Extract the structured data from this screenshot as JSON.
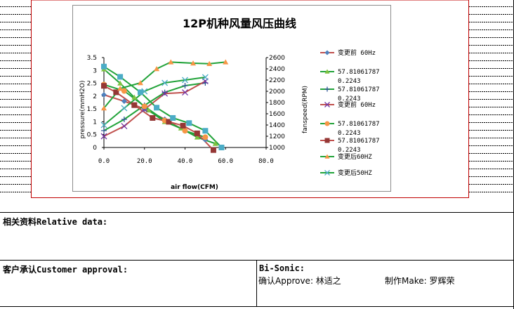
{
  "sheet": {
    "relative_data_label": "相关资料Relative data:",
    "customer_approval_label": "客户承认Customer approval:",
    "company": "Bi-Sonic:",
    "approve_label": "确认Approve: 林适之",
    "make_label": "制作Make: 罗辉荣"
  },
  "chart_data": {
    "type": "line",
    "title": "12P机种风量风压曲线",
    "xlabel": "air flow(CFM)",
    "ylabel_left": "pressure(mmH2O)",
    "ylabel_right": "fanspeed(RPM)",
    "xlim": [
      0,
      80
    ],
    "x_ticks": [
      "0.0",
      "20.0",
      "40.0",
      "60.0",
      "80.0"
    ],
    "x_tick_values": [
      0,
      20,
      40,
      60,
      80
    ],
    "ylim_left": [
      0,
      3.5
    ],
    "y_left_ticks": [
      "0",
      "0.5",
      "1",
      "1.5",
      "2",
      "2.5",
      "3",
      "3.5"
    ],
    "y_left_tick_values": [
      0,
      0.5,
      1,
      1.5,
      2,
      2.5,
      3,
      3.5
    ],
    "ylim_right": [
      1000,
      2600
    ],
    "y_right_ticks": [
      "1000",
      "1200",
      "1400",
      "1600",
      "1800",
      "2000",
      "2200",
      "2400",
      "2600"
    ],
    "y_right_tick_values": [
      1000,
      1200,
      1400,
      1600,
      1800,
      2000,
      2200,
      2400,
      2600
    ],
    "legend_position": "right",
    "series": [
      {
        "name": "变更前 60Hz",
        "axis": "left",
        "color": "#C0504D",
        "marker": "diamond",
        "marker_color": "#4F81BD",
        "x": [
          0,
          10,
          20,
          30,
          40,
          50
        ],
        "y": [
          2.05,
          1.8,
          1.5,
          1.1,
          0.65,
          0.3
        ]
      },
      {
        "name": "57.81061787 0.2243",
        "axis": "left",
        "color": "#22A33A",
        "marker": "triangle",
        "marker_color": "#7EC241",
        "x": [
          0,
          8,
          15,
          22,
          30,
          38,
          46,
          55
        ],
        "y": [
          3.05,
          2.5,
          1.95,
          1.45,
          1.0,
          0.75,
          0.4,
          0.15
        ]
      },
      {
        "name": "57.81061787 0.2243",
        "axis": "right",
        "color": "#22A33A",
        "marker": "plus",
        "marker_color": "#2F5597",
        "x": [
          0,
          10,
          20,
          30,
          40,
          50
        ],
        "y": [
          1300,
          1500,
          1750,
          1980,
          2100,
          2150
        ]
      },
      {
        "name": "变更前 60Hz",
        "axis": "right",
        "color": "#C0504D",
        "marker": "x",
        "marker_color": "#7030A0",
        "x": [
          0,
          10,
          20,
          30,
          40,
          50
        ],
        "y": [
          1200,
          1380,
          1680,
          1960,
          1980,
          2180
        ]
      },
      {
        "name": "57.81061787 0.2243",
        "axis": "left",
        "color": "#22A33A",
        "marker": "circle",
        "marker_color": "#F79646",
        "x": [
          0,
          10,
          20,
          30,
          40,
          50
        ],
        "y": [
          2.45,
          2.2,
          1.6,
          1.05,
          0.65,
          0.4
        ]
      },
      {
        "name": "57.81061787 0.2243",
        "axis": "left",
        "color": "#C0504D",
        "marker": "square",
        "marker_color": "#953735",
        "x": [
          0,
          6,
          15,
          24,
          32,
          39,
          46,
          54
        ],
        "y": [
          2.4,
          2.15,
          1.65,
          1.15,
          1.0,
          0.85,
          0.55,
          -0.1
        ]
      },
      {
        "name": "变更后60HZ",
        "axis": "right",
        "color": "#22A33A",
        "marker": "triangle",
        "marker_color": "#F79646",
        "x": [
          0,
          8,
          18,
          26,
          33,
          44,
          52,
          60
        ],
        "y": [
          1700,
          2050,
          2150,
          2400,
          2520,
          2500,
          2490,
          2520
        ]
      },
      {
        "name": "变更后50HZ",
        "axis": "right",
        "color": "#22A33A",
        "marker": "x",
        "marker_color": "#4BACC6",
        "x": [
          0,
          10,
          20,
          30,
          40,
          50
        ],
        "y": [
          1400,
          1700,
          2000,
          2150,
          2200,
          2250
        ]
      },
      {
        "name": "",
        "axis": "left",
        "color": "#22A33A",
        "marker": "square",
        "marker_color": "#4BACC6",
        "x": [
          0,
          8,
          18,
          26,
          34,
          42,
          50,
          58
        ],
        "y": [
          3.15,
          2.75,
          2.15,
          1.55,
          1.15,
          0.95,
          0.65,
          0.0
        ]
      }
    ]
  }
}
